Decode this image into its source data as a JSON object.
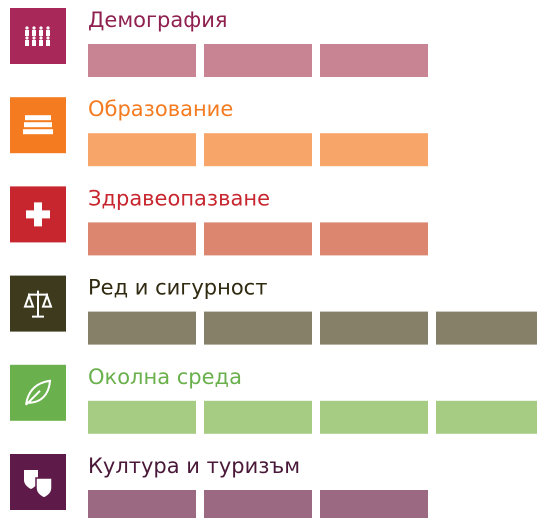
{
  "items": [
    {
      "label": "Демография",
      "icon_color": "#a8285a",
      "label_color": "#8f2150",
      "bar_color": "#c98494",
      "segments": 3
    },
    {
      "label": "Образование",
      "icon_color": "#f47b20",
      "label_color": "#f47b20",
      "bar_color": "#f8a56a",
      "segments": 3
    },
    {
      "label": "Здравеопазване",
      "icon_color": "#c8262f",
      "label_color": "#c8262f",
      "bar_color": "#dc8670",
      "segments": 3
    },
    {
      "label": "Ред и сигурност",
      "icon_color": "#3d3a1d",
      "label_color": "#2f2a10",
      "bar_color": "#868068",
      "segments": 4
    },
    {
      "label": "Околна среда",
      "icon_color": "#6ab04c",
      "label_color": "#6ab04c",
      "bar_color": "#a6cc84",
      "segments": 4
    },
    {
      "label": "Култура и туризъм",
      "icon_color": "#5e1a48",
      "label_color": "#4a1838",
      "bar_color": "#9b6a82",
      "segments": 3
    }
  ]
}
